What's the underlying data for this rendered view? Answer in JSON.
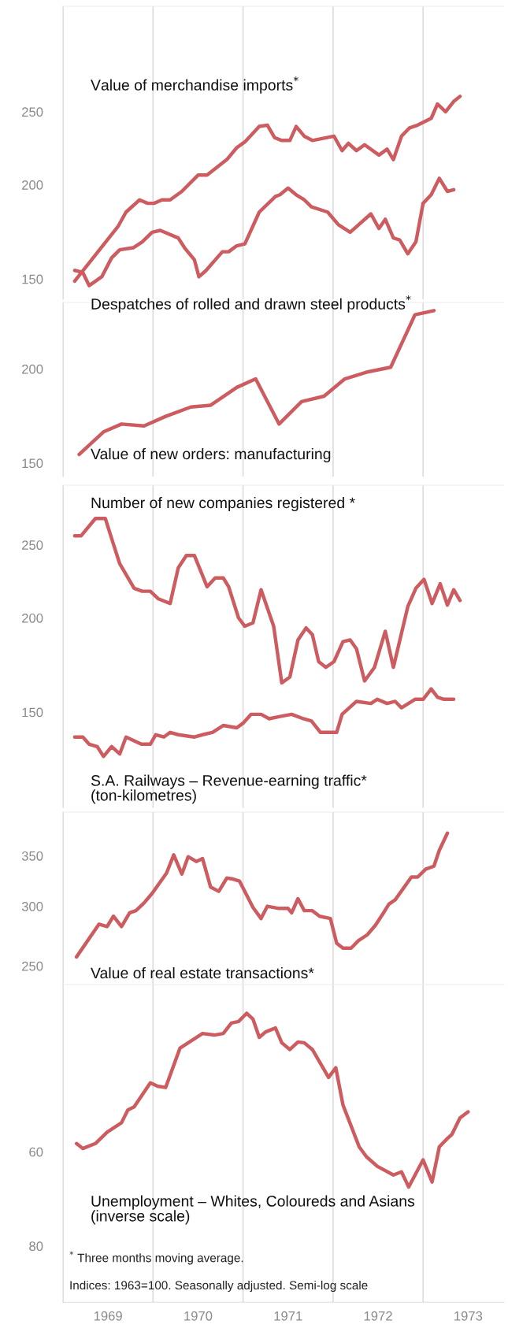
{
  "chart_data": [
    {
      "type": "line",
      "log": true,
      "grid": "x",
      "tick_labels": "y",
      "xlim": [
        1969,
        1973.9
      ],
      "xticks": [
        {
          "value": 1969,
          "label": null
        },
        {
          "value": 1970,
          "label": null
        },
        {
          "value": 1971,
          "label": null
        },
        {
          "value": 1972,
          "label": null
        },
        {
          "value": 1973,
          "label": null
        }
      ],
      "ylim": [
        141,
        345
      ],
      "yticks": [
        150,
        200,
        250
      ],
      "series": [
        {
          "name": "Value of merchandise imports$^{*}$",
          "color": "#cd5c60",
          "x": [
            1969.13,
            1969.61,
            1969.7,
            1969.85,
            1969.94,
            1970.01,
            1970.1,
            1970.19,
            1970.32,
            1970.5,
            1970.6,
            1970.82,
            1970.93,
            1971.02,
            1971.18,
            1971.27,
            1971.35,
            1971.43,
            1971.52,
            1971.59,
            1971.68,
            1971.77,
            1972.01,
            1972.1,
            1972.17,
            1972.26,
            1972.35,
            1972.51,
            1972.6,
            1972.67,
            1972.76,
            1972.85,
            1972.94,
            1973.09,
            1973.16,
            1973.25,
            1973.34,
            1973.41
          ],
          "values": [
            149,
            176,
            184,
            191,
            189,
            189,
            191,
            191,
            196,
            206,
            206,
            216,
            224,
            228,
            239,
            240,
            231,
            229,
            229,
            239,
            232,
            229,
            232,
            222,
            227,
            222,
            226,
            219,
            223,
            216,
            232,
            238,
            240,
            245,
            256,
            250,
            258,
            262
          ]
        },
        {
          "name": "Despatches of rolled and drawn steel products$^{*}$",
          "color": "#cd5c60",
          "x": [
            1969.13,
            1969.22,
            1969.29,
            1969.43,
            1969.54,
            1969.63,
            1969.78,
            1969.88,
            1969.99,
            1970.08,
            1970.28,
            1970.35,
            1970.46,
            1970.51,
            1970.59,
            1970.77,
            1970.84,
            1970.93,
            1971.02,
            1971.18,
            1971.36,
            1971.41,
            1971.5,
            1971.59,
            1971.68,
            1971.76,
            1971.94,
            1972.06,
            1972.19,
            1972.42,
            1972.51,
            1972.58,
            1972.67,
            1972.74,
            1972.83,
            1972.92,
            1973.0,
            1973.09,
            1973.18,
            1973.27,
            1973.34
          ],
          "values": [
            154,
            153,
            147,
            151,
            160,
            164,
            165,
            168,
            173,
            174,
            170,
            165,
            159,
            151,
            154,
            163,
            163,
            166,
            167,
            184,
            193,
            194,
            198,
            194,
            191,
            187,
            184,
            177,
            173,
            183,
            175,
            180,
            170,
            169,
            162,
            168,
            189,
            194,
            204,
            196,
            197
          ]
        }
      ]
    },
    {
      "type": "line",
      "log": true,
      "grid": "x",
      "tick_labels": "y",
      "xlim": [
        1969,
        1973.9
      ],
      "xticks": [
        {
          "value": 1969,
          "label": null
        },
        {
          "value": 1970,
          "label": null
        },
        {
          "value": 1971,
          "label": null
        },
        {
          "value": 1972,
          "label": null
        },
        {
          "value": 1973,
          "label": null
        }
      ],
      "ylim": [
        144,
        245
      ],
      "yticks": [
        150,
        200
      ],
      "series": [
        {
          "name": "Value of new orders: manufacturing",
          "color": "#cd5c60",
          "x": [
            1969.18,
            1969.45,
            1969.65,
            1969.9,
            1970.14,
            1970.42,
            1970.64,
            1970.93,
            1971.14,
            1971.4,
            1971.65,
            1971.9,
            1972.13,
            1972.37,
            1972.64,
            1972.91,
            1973.12
          ],
          "values": [
            154,
            165,
            169,
            168,
            173,
            178,
            179,
            189,
            194,
            169,
            181,
            184,
            194,
            198,
            201,
            236,
            239
          ]
        }
      ]
    },
    {
      "type": "line",
      "log": true,
      "grid": "x",
      "tick_labels": "y",
      "xlim": [
        1969,
        1973.9
      ],
      "xticks": [
        {
          "value": 1969,
          "label": null
        },
        {
          "value": 1970,
          "label": null
        },
        {
          "value": 1971,
          "label": null
        },
        {
          "value": 1972,
          "label": null
        },
        {
          "value": 1973,
          "label": null
        }
      ],
      "ylim": [
        112,
        300
      ],
      "yticks": [
        150,
        200,
        250
      ],
      "series": [
        {
          "name": "Number of new companies registered *",
          "color": "#cd5c60",
          "x": [
            1969.13,
            1969.2,
            1969.36,
            1969.47,
            1969.54,
            1969.63,
            1969.79,
            1969.88,
            1969.97,
            1970.06,
            1970.19,
            1970.28,
            1970.37,
            1970.46,
            1970.6,
            1970.69,
            1970.78,
            1970.84,
            1970.95,
            1971.02,
            1971.11,
            1971.2,
            1971.34,
            1971.43,
            1971.52,
            1971.61,
            1971.7,
            1971.77,
            1971.84,
            1971.92,
            1972.01,
            1972.11,
            1972.19,
            1972.26,
            1972.35,
            1972.46,
            1972.58,
            1972.67,
            1972.83,
            1972.92,
            1973.01,
            1973.1,
            1973.19,
            1973.27,
            1973.34,
            1973.41
          ],
          "values": [
            257,
            257,
            271,
            271,
            255,
            236,
            219,
            217,
            217,
            212,
            209,
            233,
            242,
            242,
            220,
            226,
            226,
            220,
            200,
            195,
            197,
            218,
            195,
            164,
            167,
            187,
            194,
            190,
            175,
            172,
            175,
            186,
            187,
            182,
            165,
            172,
            192,
            172,
            207,
            219,
            225,
            209,
            222,
            208,
            218,
            211
          ]
        },
        {
          "name": "S.A. Railways – Revenue-earning traffic*\n(ton-kilometres)",
          "color": "#cd5c60",
          "x": [
            1969.13,
            1969.22,
            1969.29,
            1969.38,
            1969.45,
            1969.54,
            1969.63,
            1969.7,
            1969.87,
            1969.97,
            1970.03,
            1970.12,
            1970.19,
            1970.28,
            1970.46,
            1970.55,
            1970.66,
            1970.78,
            1970.93,
            1971.0,
            1971.09,
            1971.2,
            1971.29,
            1971.41,
            1971.54,
            1971.67,
            1971.76,
            1971.86,
            1972.04,
            1972.1,
            1972.26,
            1972.42,
            1972.49,
            1972.6,
            1972.69,
            1972.76,
            1972.91,
            1973.0,
            1973.09,
            1973.16,
            1973.23,
            1973.34
          ],
          "values": [
            139,
            139,
            136,
            135,
            131,
            135,
            132,
            139,
            136,
            136,
            140,
            139,
            141,
            140,
            139,
            140,
            141,
            144,
            143,
            145,
            149,
            149,
            147,
            148,
            149,
            147,
            146,
            141,
            141,
            149,
            155,
            154,
            156,
            154,
            155,
            152,
            156,
            156,
            161,
            157,
            156,
            156
          ]
        }
      ]
    },
    {
      "type": "line",
      "log": true,
      "grid": "x",
      "tick_labels": "y",
      "xlim": [
        1969,
        1973.9
      ],
      "xticks": [
        {
          "value": 1969,
          "label": null
        },
        {
          "value": 1970,
          "label": null
        },
        {
          "value": 1971,
          "label": null
        },
        {
          "value": 1972,
          "label": null
        },
        {
          "value": 1973,
          "label": null
        }
      ],
      "ylim": [
        236,
        400
      ],
      "yticks": [
        250,
        300,
        350
      ],
      "series": [
        {
          "name": "Value of real estate transactions*",
          "color": "#cd5c60",
          "x": [
            1969.15,
            1969.4,
            1969.49,
            1969.56,
            1969.65,
            1969.74,
            1969.81,
            1969.9,
            1969.99,
            1970.15,
            1970.23,
            1970.32,
            1970.39,
            1970.48,
            1970.55,
            1970.64,
            1970.73,
            1970.82,
            1970.89,
            1970.96,
            1971.11,
            1971.2,
            1971.27,
            1971.4,
            1971.5,
            1971.54,
            1971.61,
            1971.68,
            1971.77,
            1971.85,
            1971.97,
            1972.04,
            1972.11,
            1972.2,
            1972.28,
            1972.38,
            1972.47,
            1972.56,
            1972.62,
            1972.69,
            1972.87,
            1972.94,
            1973.03,
            1973.12,
            1973.18,
            1973.27
          ],
          "values": [
            257,
            284,
            282,
            291,
            282,
            294,
            296,
            303,
            312,
            332,
            351,
            331,
            349,
            344,
            347,
            318,
            314,
            327,
            326,
            324,
            299,
            289,
            300,
            298,
            298,
            294,
            307,
            296,
            296,
            291,
            289,
            268,
            264,
            264,
            270,
            275,
            283,
            294,
            302,
            306,
            328,
            328,
            336,
            339,
            356,
            375
          ]
        }
      ]
    },
    {
      "type": "line",
      "log": true,
      "grid": "x",
      "xlim": [
        1969,
        1973.9
      ],
      "xticks": [
        {
          "value": 1969,
          "label": null
        },
        {
          "value": 1969.5,
          "label": "1969"
        },
        {
          "value": 1970,
          "label": null
        },
        {
          "value": 1970.5,
          "label": "1970"
        },
        {
          "value": 1971,
          "label": null
        },
        {
          "value": 1971.5,
          "label": "1971"
        },
        {
          "value": 1972,
          "label": null
        },
        {
          "value": 1972.5,
          "label": "1972"
        },
        {
          "value": 1973,
          "label": null
        },
        {
          "value": 1973.5,
          "label": "1973"
        }
      ],
      "ylim": [
        95,
        36
      ],
      "yticks": [
        60,
        80
      ],
      "series": [
        {
          "name": "Unemployment – Whites, Coloureds and Asians\n(inverse scale)",
          "color": "#cd5c60",
          "x": [
            1969.15,
            1969.22,
            1969.36,
            1969.49,
            1969.65,
            1969.72,
            1969.79,
            1969.97,
            1970.05,
            1970.14,
            1970.3,
            1970.55,
            1970.68,
            1970.78,
            1970.87,
            1970.95,
            1971.04,
            1971.11,
            1971.18,
            1971.25,
            1971.36,
            1971.43,
            1971.52,
            1971.61,
            1971.68,
            1971.77,
            1971.95,
            1972.03,
            1972.11,
            1972.29,
            1972.37,
            1972.49,
            1972.67,
            1972.76,
            1972.84,
            1973.0,
            1973.1,
            1973.18,
            1973.27,
            1973.32,
            1973.41,
            1973.5
          ],
          "values": [
            58.5,
            59.4,
            58.5,
            56.5,
            54.9,
            52.8,
            52.3,
            48.6,
            49.1,
            49.3,
            43.7,
            41.8,
            42.0,
            41.8,
            40.5,
            40.3,
            39.3,
            40.0,
            42.3,
            41.6,
            41.1,
            43.0,
            43.9,
            42.9,
            43.0,
            43.9,
            47.8,
            46.4,
            52.0,
            59.1,
            60.9,
            62.7,
            64.4,
            63.8,
            66.8,
            61.5,
            65.8,
            59.1,
            57.6,
            56.9,
            54.1,
            53.1
          ]
        }
      ],
      "annotations": [
        "$^{*}$ Three months moving average.",
        "Indices: 1963=100. Seasonally adjusted. Semi-log scale"
      ]
    }
  ]
}
